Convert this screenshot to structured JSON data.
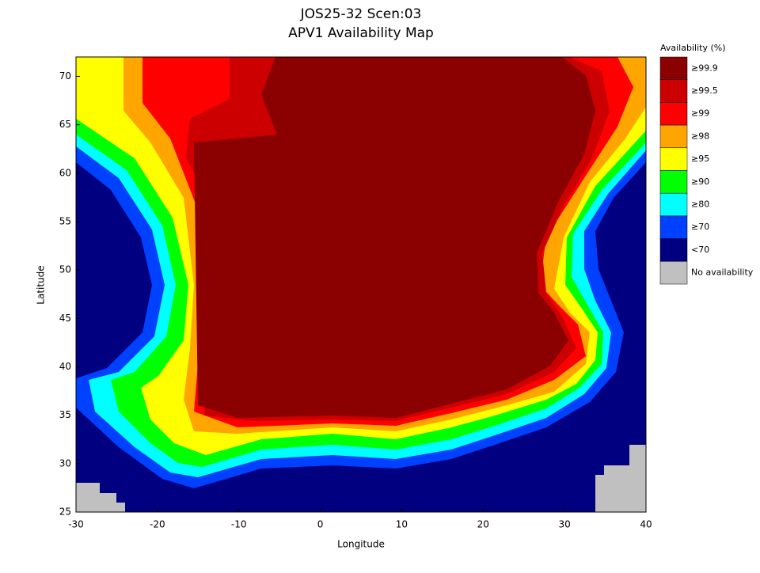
{
  "chart_data": {
    "type": "heatmap",
    "title": "JOS25-32 Scen:03",
    "subtitle": "APV1 Availability Map",
    "x_label": "Longitude",
    "y_label": "Latitude",
    "xlim": [
      -30,
      40
    ],
    "ylim": [
      25,
      72
    ],
    "xticks": [
      -30,
      -20,
      -10,
      0,
      10,
      20,
      30,
      40
    ],
    "yticks": [
      25,
      30,
      35,
      40,
      45,
      50,
      55,
      60,
      65,
      70
    ],
    "legend_title": "Availability (%)",
    "legend": [
      {
        "label": "≥99.9",
        "color": "#8b0000"
      },
      {
        "label": "≥99.5",
        "color": "#cc0000"
      },
      {
        "label": "≥99",
        "color": "#ff0000"
      },
      {
        "label": "≥98",
        "color": "#ffa500"
      },
      {
        "label": "≥95",
        "color": "#ffff00"
      },
      {
        "label": "≥90",
        "color": "#00ff00"
      },
      {
        "label": "≥80",
        "color": "#00ffff"
      },
      {
        "label": "≥70",
        "color": "#0040ff"
      },
      {
        "label": "<70",
        "color": "#000080"
      },
      {
        "label": "No availability",
        "color": "#c0c0c0"
      }
    ]
  }
}
